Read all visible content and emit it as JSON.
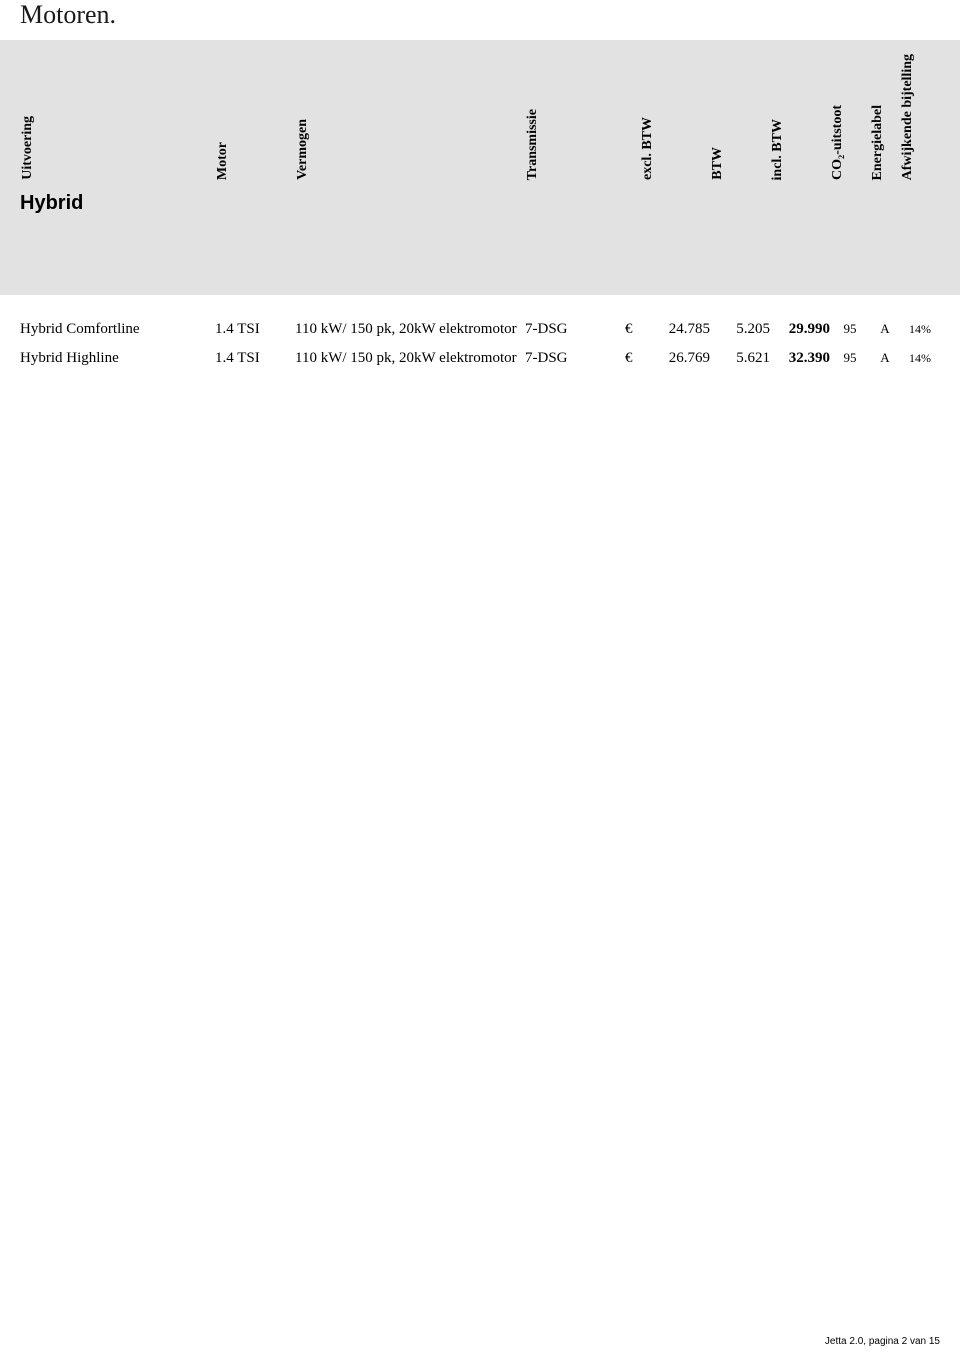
{
  "title": "Motoren.",
  "columns": {
    "uitvoering": "Uitvoering",
    "motor": "Motor",
    "vermogen": "Vermogen",
    "transmissie": "Transmissie",
    "exclbtw": "excl. BTW",
    "btw": "BTW",
    "inclbtw": "incl. BTW",
    "co2": "CO₂-uitstoot",
    "energie": "Energielabel",
    "bijtelling": "Afwijkende bijtelling"
  },
  "section": "Hybrid",
  "currency": "€",
  "rows": [
    {
      "uitvoering": "Hybrid Comfortline",
      "motor": "1.4 TSI",
      "vermogen": "110 kW/ 150 pk, 20kW elektromotor",
      "transmissie": "7-DSG",
      "exclbtw": "24.785",
      "btw": "5.205",
      "inclbtw": "29.990",
      "co2": "95",
      "energie": "A",
      "bijtelling": "14%"
    },
    {
      "uitvoering": "Hybrid Highline",
      "motor": "1.4 TSI",
      "vermogen": "110 kW/ 150 pk, 20kW elektromotor",
      "transmissie": "7-DSG",
      "exclbtw": "26.769",
      "btw": "5.621",
      "inclbtw": "32.390",
      "co2": "95",
      "energie": "A",
      "bijtelling": "14%"
    }
  ],
  "footer": "Jetta 2.0, pagina 2 van 15"
}
